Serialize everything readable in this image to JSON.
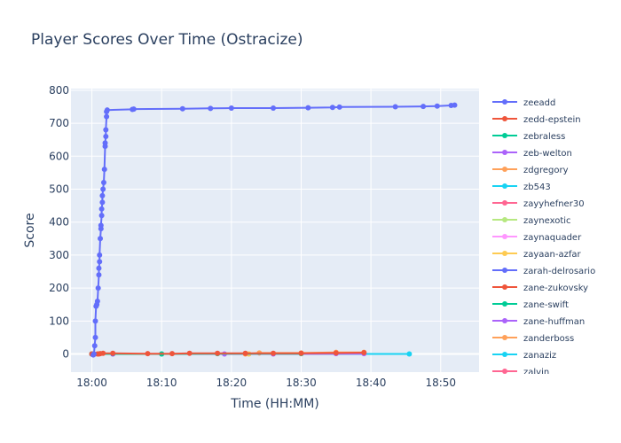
{
  "chart_data": {
    "type": "line",
    "title": "Player Scores Over Time (Ostracize)",
    "xlabel": "Time (HH:MM)",
    "ylabel": "Score",
    "x_tick_labels": [
      "18:00",
      "18:10",
      "18:20",
      "18:30",
      "18:40",
      "18:50"
    ],
    "x_ticks_min": [
      0,
      10,
      20,
      30,
      40,
      50
    ],
    "xlim_min": [
      -3,
      55.5
    ],
    "ylim": [
      -55,
      805
    ],
    "y_ticks": [
      0,
      100,
      200,
      300,
      400,
      500,
      600,
      700,
      800
    ],
    "grid": true,
    "legend_position": "right",
    "series": [
      {
        "name": "zeeadd",
        "color": "#636efa",
        "x": [
          0.2,
          0.3,
          0.4,
          0.5,
          0.5,
          0.6,
          0.7,
          0.8,
          0.9,
          1.0,
          1.0,
          1.1,
          1.1,
          1.2,
          1.3,
          1.3,
          1.4,
          1.4,
          1.5,
          1.5,
          1.6,
          1.7,
          1.8,
          1.9,
          1.9,
          2.0,
          2.0,
          2.1,
          2.1,
          2.2,
          5.8,
          6.0,
          13.0,
          17.0,
          20.0,
          26.0,
          31.0,
          34.5,
          35.5,
          43.5,
          47.5,
          49.5,
          51.5,
          52.0
        ],
        "y": [
          -3,
          0,
          25,
          50,
          100,
          145,
          150,
          160,
          200,
          240,
          260,
          280,
          300,
          350,
          380,
          390,
          420,
          440,
          460,
          480,
          500,
          520,
          560,
          630,
          640,
          660,
          680,
          720,
          735,
          740,
          742,
          743,
          744,
          745,
          746,
          746,
          747,
          748,
          749,
          750,
          751,
          752,
          754,
          755
        ]
      },
      {
        "name": "zedd-epstein",
        "color": "#ef553b",
        "x": [
          0.0,
          0.8,
          1.2,
          1.6,
          3.0,
          8.0,
          11.5,
          14.0,
          18.0,
          22.0,
          26.0,
          30.0,
          35.0,
          39.0
        ],
        "y": [
          0,
          0,
          1,
          2,
          2,
          1,
          1,
          2,
          2,
          2,
          2,
          2,
          3,
          4
        ]
      },
      {
        "name": "zebraless",
        "color": "#00cc96",
        "x": [
          0.0,
          10.0,
          18.0,
          30.0
        ],
        "y": [
          0,
          0,
          1,
          1
        ]
      },
      {
        "name": "zeb-welton",
        "color": "#ab63fa",
        "x": [
          0.0,
          19.0,
          26.0,
          35.0,
          39.0
        ],
        "y": [
          0,
          0,
          0,
          1,
          1
        ]
      },
      {
        "name": "zdgregory",
        "color": "#ffa15a",
        "x": [
          0.0,
          22.0,
          24.0,
          30.0,
          35.0,
          39.0
        ],
        "y": [
          0,
          0,
          3,
          3,
          5,
          5
        ]
      },
      {
        "name": "zb543",
        "color": "#19d3f3",
        "x": [
          0.0,
          10.0,
          45.5
        ],
        "y": [
          0,
          0,
          0
        ]
      },
      {
        "name": "zayyhefner30",
        "color": "#ff6692",
        "x": [
          0.0
        ],
        "y": [
          0
        ]
      },
      {
        "name": "zaynexotic",
        "color": "#b6e880",
        "x": [
          0.0
        ],
        "y": [
          0
        ]
      },
      {
        "name": "zaynaquader",
        "color": "#ff97ff",
        "x": [
          0.0
        ],
        "y": [
          0
        ]
      },
      {
        "name": "zayaan-azfar",
        "color": "#fecb52",
        "x": [
          0.0,
          22.5
        ],
        "y": [
          0,
          0
        ]
      },
      {
        "name": "zarah-delrosario",
        "color": "#636efa",
        "x": [
          0.0,
          3.0
        ],
        "y": [
          0,
          0
        ]
      },
      {
        "name": "zane-zukovsky",
        "color": "#ef553b",
        "x": [
          0.0,
          1.0
        ],
        "y": [
          0,
          0
        ]
      },
      {
        "name": "zane-swift",
        "color": "#00cc96",
        "x": [
          0.0
        ],
        "y": [
          0
        ]
      },
      {
        "name": "zane-huffman",
        "color": "#ab63fa",
        "x": [
          0.0
        ],
        "y": [
          0
        ]
      },
      {
        "name": "zanderboss",
        "color": "#ffa15a",
        "x": [
          0.0
        ],
        "y": [
          0
        ]
      },
      {
        "name": "zanaziz",
        "color": "#19d3f3",
        "x": [
          0.0
        ],
        "y": [
          0
        ]
      },
      {
        "name": "zalvin",
        "color": "#ff6692",
        "x": [
          0.0
        ],
        "y": [
          0
        ]
      }
    ]
  }
}
